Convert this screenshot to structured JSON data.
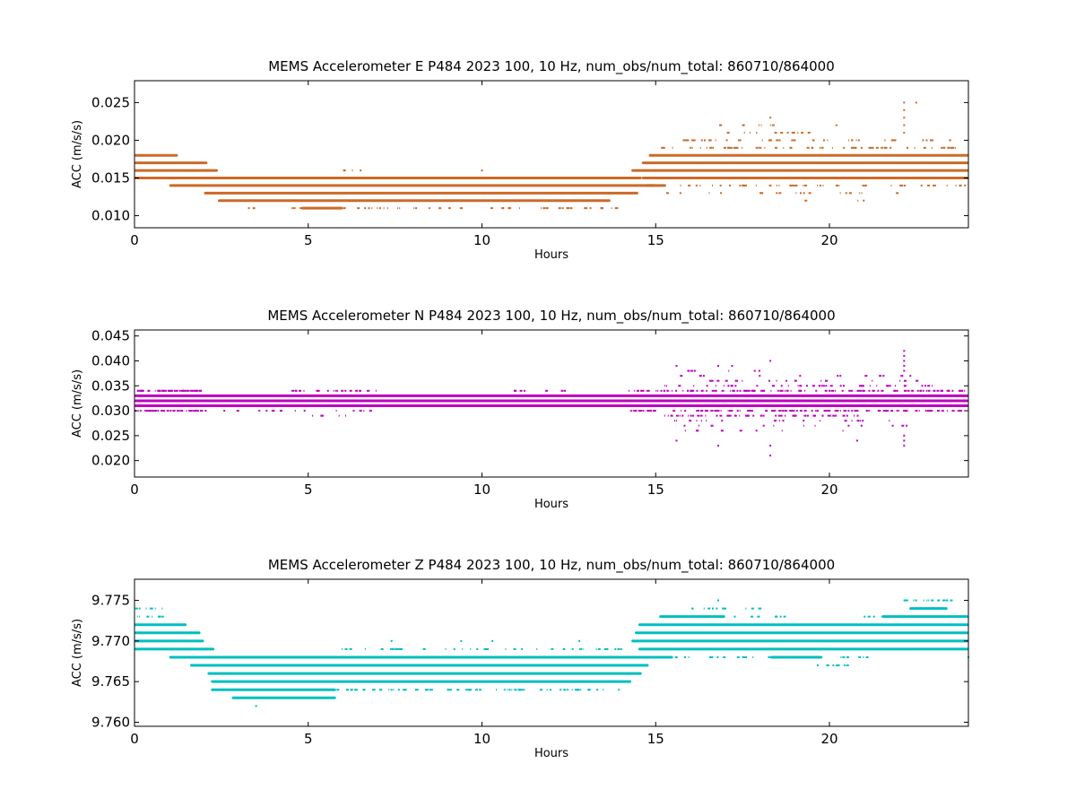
{
  "figure": {
    "background": "#ffffff"
  },
  "chart_data": [
    {
      "type": "scatter",
      "title": "MEMS Accelerometer E P484 2023 100, 10 Hz, num_obs/num_total: 860710/864000",
      "xlabel": "Hours",
      "ylabel": "ACC (m/s/s)",
      "xlim": [
        0,
        24
      ],
      "ylim": [
        0.0084,
        0.0279
      ],
      "xticks": [
        0,
        5,
        10,
        15,
        20
      ],
      "xtick_labels": [
        "0",
        "5",
        "10",
        "15",
        "20"
      ],
      "yticks": [
        0.01,
        0.015,
        0.02,
        0.025
      ],
      "ytick_labels": [
        "0.010",
        "0.015",
        "0.020",
        "0.025"
      ],
      "color": "#cc6a28",
      "grid": false,
      "series": [
        {
          "band_thickness": 3,
          "dot_thickness": 2,
          "bands": [
            {
              "y": 0.018,
              "x": [
                0,
                1.25
              ]
            },
            {
              "y": 0.017,
              "x": [
                0,
                2.1
              ]
            },
            {
              "y": 0.016,
              "x": [
                0,
                2.4
              ]
            },
            {
              "y": 0.015,
              "x": [
                0,
                14.6
              ]
            },
            {
              "y": 0.014,
              "x": [
                1.0,
                15.0
              ]
            },
            {
              "y": 0.013,
              "x": [
                2.0,
                14.5
              ]
            },
            {
              "y": 0.012,
              "x": [
                2.4,
                13.7
              ]
            },
            {
              "y": 0.011,
              "x": [
                4.8,
                6.0
              ]
            },
            {
              "y": 0.018,
              "x": [
                14.8,
                24.0
              ]
            },
            {
              "y": 0.017,
              "x": [
                14.6,
                24.0
              ]
            },
            {
              "y": 0.016,
              "x": [
                14.3,
                24.0
              ]
            },
            {
              "y": 0.015,
              "x": [
                14.6,
                24.0
              ]
            },
            {
              "y": 0.014,
              "x": [
                14.7,
                15.3
              ]
            }
          ],
          "sparse_rows": [
            {
              "y": 0.011,
              "x": [
                3.2,
                13.9
              ],
              "n": 55,
              "seed": 1
            },
            {
              "y": 0.016,
              "x": [
                5.8,
                7.0
              ],
              "n": 4,
              "seed": 2
            },
            {
              "y": 0.019,
              "x": [
                15.0,
                24.0
              ],
              "n": 60,
              "seed": 3
            },
            {
              "y": 0.02,
              "x": [
                15.6,
                24.0
              ],
              "n": 45,
              "seed": 4
            },
            {
              "y": 0.021,
              "x": [
                16.6,
                19.5
              ],
              "n": 14,
              "seed": 5
            },
            {
              "y": 0.022,
              "x": [
                16.8,
                18.4
              ],
              "n": 8,
              "seed": 6
            },
            {
              "y": 0.014,
              "x": [
                15.5,
                24.0
              ],
              "n": 45,
              "seed": 7
            },
            {
              "y": 0.013,
              "x": [
                15.2,
                22.3
              ],
              "n": 18,
              "seed": 8
            },
            {
              "y": 0.012,
              "x": [
                18.4,
                22.2
              ],
              "n": 3,
              "seed": 9
            }
          ],
          "points": [
            {
              "x": 18.3,
              "y": 0.023
            },
            {
              "x": 20.2,
              "y": 0.022
            },
            {
              "x": 22.15,
              "y": 0.025
            },
            {
              "x": 22.15,
              "y": 0.024
            },
            {
              "x": 22.15,
              "y": 0.023
            },
            {
              "x": 22.15,
              "y": 0.022
            },
            {
              "x": 22.15,
              "y": 0.021
            },
            {
              "x": 22.5,
              "y": 0.025
            },
            {
              "x": 10.0,
              "y": 0.016
            }
          ]
        }
      ]
    },
    {
      "type": "scatter",
      "title": "MEMS Accelerometer N P484 2023 100, 10 Hz, num_obs/num_total: 860710/864000",
      "xlabel": "Hours",
      "ylabel": "ACC (m/s/s)",
      "xlim": [
        0,
        24
      ],
      "ylim": [
        0.0167,
        0.0462
      ],
      "xticks": [
        0,
        5,
        10,
        15,
        20
      ],
      "xtick_labels": [
        "0",
        "5",
        "10",
        "15",
        "20"
      ],
      "yticks": [
        0.02,
        0.025,
        0.03,
        0.035,
        0.04,
        0.045
      ],
      "ytick_labels": [
        "0.020",
        "0.025",
        "0.030",
        "0.035",
        "0.040",
        "0.045"
      ],
      "color": "#bf00bf",
      "grid": false,
      "series": [
        {
          "band_thickness": 3,
          "dot_thickness": 2,
          "bands": [
            {
              "y": 0.033,
              "x": [
                0,
                24
              ]
            },
            {
              "y": 0.032,
              "x": [
                0,
                24
              ]
            },
            {
              "y": 0.031,
              "x": [
                0,
                24
              ]
            }
          ],
          "sparse_rows": [
            {
              "y": 0.034,
              "x": [
                0,
                2.1
              ],
              "n": 50,
              "seed": 11
            },
            {
              "y": 0.03,
              "x": [
                0,
                2.1
              ],
              "n": 50,
              "seed": 12
            },
            {
              "y": 0.034,
              "x": [
                4.5,
                7.0
              ],
              "n": 22,
              "seed": 13
            },
            {
              "y": 0.03,
              "x": [
                2.2,
                7.0
              ],
              "n": 14,
              "seed": 14
            },
            {
              "y": 0.029,
              "x": [
                5.1,
                6.1
              ],
              "n": 5,
              "seed": 15
            },
            {
              "y": 0.034,
              "x": [
                10.8,
                12.4
              ],
              "n": 8,
              "seed": 16
            },
            {
              "y": 0.034,
              "x": [
                14.2,
                24
              ],
              "n": 120,
              "seed": 17
            },
            {
              "y": 0.03,
              "x": [
                14.2,
                24
              ],
              "n": 120,
              "seed": 18
            },
            {
              "y": 0.035,
              "x": [
                15.2,
                23.0
              ],
              "n": 45,
              "seed": 19
            },
            {
              "y": 0.029,
              "x": [
                15.2,
                20.8
              ],
              "n": 60,
              "seed": 20
            },
            {
              "y": 0.036,
              "x": [
                15.5,
                22.5
              ],
              "n": 18,
              "seed": 21
            },
            {
              "y": 0.028,
              "x": [
                15.5,
                22.2
              ],
              "n": 18,
              "seed": 22
            },
            {
              "y": 0.037,
              "x": [
                15.5,
                22.5
              ],
              "n": 12,
              "seed": 23
            },
            {
              "y": 0.027,
              "x": [
                15.5,
                22.5
              ],
              "n": 12,
              "seed": 24
            },
            {
              "y": 0.038,
              "x": [
                15.7,
                19.2
              ],
              "n": 6,
              "seed": 25
            },
            {
              "y": 0.026,
              "x": [
                15.7,
                22.3
              ],
              "n": 8,
              "seed": 26
            }
          ],
          "points": [
            {
              "x": 15.6,
              "y": 0.039
            },
            {
              "x": 16.8,
              "y": 0.039
            },
            {
              "x": 17.2,
              "y": 0.039
            },
            {
              "x": 18.3,
              "y": 0.04
            },
            {
              "x": 22.15,
              "y": 0.042
            },
            {
              "x": 22.15,
              "y": 0.041
            },
            {
              "x": 22.15,
              "y": 0.04
            },
            {
              "x": 22.15,
              "y": 0.039
            },
            {
              "x": 22.15,
              "y": 0.038
            },
            {
              "x": 15.6,
              "y": 0.024
            },
            {
              "x": 16.8,
              "y": 0.023
            },
            {
              "x": 18.3,
              "y": 0.021
            },
            {
              "x": 18.3,
              "y": 0.023
            },
            {
              "x": 20.8,
              "y": 0.024
            },
            {
              "x": 22.15,
              "y": 0.023
            },
            {
              "x": 22.15,
              "y": 0.024
            },
            {
              "x": 22.15,
              "y": 0.025
            }
          ]
        }
      ]
    },
    {
      "type": "scatter",
      "title": "MEMS Accelerometer Z P484 2023 100, 10 Hz, num_obs/num_total: 860710/864000",
      "xlabel": "Hours",
      "ylabel": "ACC (m/s/s)",
      "xlim": [
        0,
        24
      ],
      "ylim": [
        9.7595,
        9.7776
      ],
      "xticks": [
        0,
        5,
        10,
        15,
        20
      ],
      "xtick_labels": [
        "0",
        "5",
        "10",
        "15",
        "20"
      ],
      "yticks": [
        9.76,
        9.765,
        9.77,
        9.775
      ],
      "ytick_labels": [
        "9.760",
        "9.765",
        "9.770",
        "9.775"
      ],
      "color": "#00bfbf",
      "grid": false,
      "series": [
        {
          "band_thickness": 3,
          "dot_thickness": 2,
          "bands": [
            {
              "y": 9.772,
              "x": [
                0,
                1.5
              ]
            },
            {
              "y": 9.771,
              "x": [
                0,
                1.9
              ]
            },
            {
              "y": 9.77,
              "x": [
                0,
                2.0
              ]
            },
            {
              "y": 9.769,
              "x": [
                0,
                2.3
              ]
            },
            {
              "y": 9.768,
              "x": [
                1.0,
                15.5
              ]
            },
            {
              "y": 9.767,
              "x": [
                1.6,
                14.8
              ]
            },
            {
              "y": 9.766,
              "x": [
                2.1,
                14.6
              ]
            },
            {
              "y": 9.765,
              "x": [
                2.2,
                14.3
              ]
            },
            {
              "y": 9.764,
              "x": [
                2.2,
                5.8
              ]
            },
            {
              "y": 9.763,
              "x": [
                2.8,
                5.8
              ]
            },
            {
              "y": 9.773,
              "x": [
                15.1,
                17.0
              ]
            },
            {
              "y": 9.772,
              "x": [
                14.5,
                24
              ]
            },
            {
              "y": 9.771,
              "x": [
                14.4,
                24
              ]
            },
            {
              "y": 9.77,
              "x": [
                14.3,
                24
              ]
            },
            {
              "y": 9.769,
              "x": [
                14.5,
                24
              ]
            },
            {
              "y": 9.768,
              "x": [
                18.3,
                19.8
              ]
            },
            {
              "y": 9.774,
              "x": [
                22.3,
                23.4
              ]
            },
            {
              "y": 9.773,
              "x": [
                21.5,
                24
              ]
            }
          ],
          "sparse_rows": [
            {
              "y": 9.774,
              "x": [
                0,
                0.8
              ],
              "n": 8,
              "seed": 31
            },
            {
              "y": 9.773,
              "x": [
                0,
                0.8
              ],
              "n": 8,
              "seed": 32
            },
            {
              "y": 9.769,
              "x": [
                5.8,
                14.3
              ],
              "n": 40,
              "seed": 33
            },
            {
              "y": 9.764,
              "x": [
                5.8,
                14.1
              ],
              "n": 70,
              "seed": 34
            },
            {
              "y": 9.773,
              "x": [
                15.1,
                18.8
              ],
              "n": 30,
              "seed": 35
            },
            {
              "y": 9.774,
              "x": [
                15.9,
                18.0
              ],
              "n": 15,
              "seed": 36
            },
            {
              "y": 9.768,
              "x": [
                15.0,
                21.3
              ],
              "n": 30,
              "seed": 37
            },
            {
              "y": 9.767,
              "x": [
                19.3,
                20.6
              ],
              "n": 10,
              "seed": 38
            },
            {
              "y": 9.775,
              "x": [
                22.0,
                23.5
              ],
              "n": 12,
              "seed": 39
            },
            {
              "y": 9.773,
              "x": [
                20.9,
                21.5
              ],
              "n": 3,
              "seed": 40
            }
          ],
          "points": [
            {
              "x": 16.8,
              "y": 9.775
            },
            {
              "x": 7.4,
              "y": 9.77
            },
            {
              "x": 9.4,
              "y": 9.77
            },
            {
              "x": 10.3,
              "y": 9.77
            },
            {
              "x": 12.8,
              "y": 9.77
            },
            {
              "x": 3.5,
              "y": 9.762
            },
            {
              "x": 24.0,
              "y": 9.768
            }
          ]
        }
      ]
    }
  ]
}
